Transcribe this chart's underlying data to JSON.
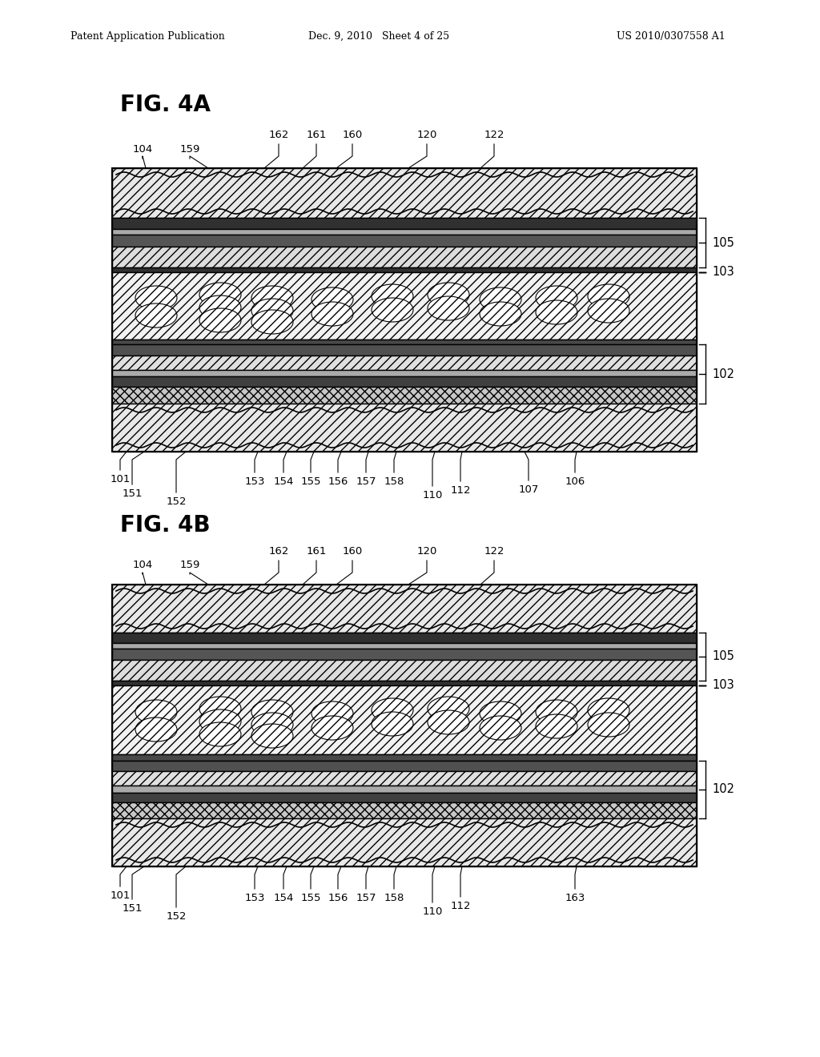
{
  "title_header_left": "Patent Application Publication",
  "title_header_mid": "Dec. 9, 2010   Sheet 4 of 25",
  "title_header_right": "US 2010/0307558 A1",
  "fig4a_label": "FIG. 4A",
  "fig4b_label": "FIG. 4B",
  "bg_color": "#ffffff"
}
